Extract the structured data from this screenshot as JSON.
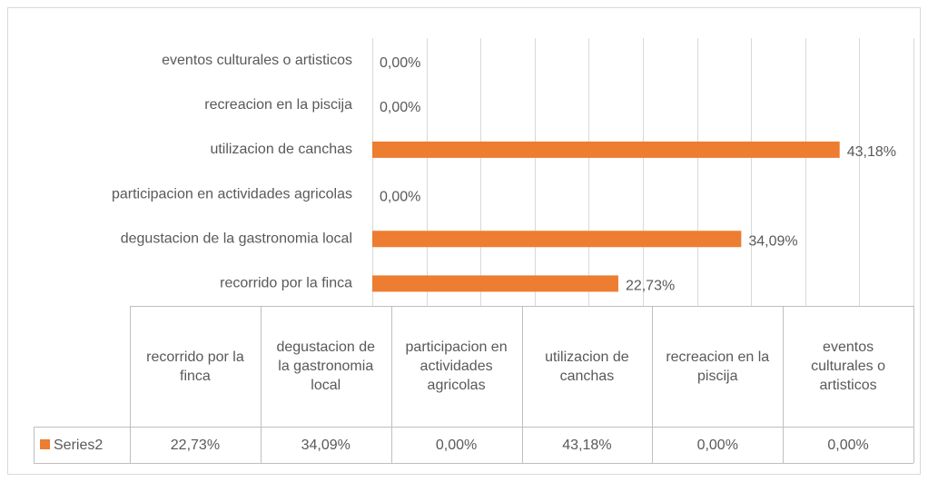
{
  "chart_data": {
    "type": "bar",
    "orientation": "horizontal",
    "categories": [
      "recorrido por la finca",
      "degustacion de la gastronomia local",
      "participacion en actividades agricolas",
      "utilizacion de canchas",
      "recreacion en la piscija",
      "eventos culturales o artisticos"
    ],
    "series": [
      {
        "name": "Series2",
        "color": "#ed7d31",
        "values": [
          22.73,
          34.09,
          0,
          43.18,
          0,
          0
        ],
        "value_labels": [
          "22,73%",
          "34,09%",
          "0,00%",
          "43,18%",
          "0,00%",
          "0,00%"
        ]
      }
    ],
    "xlim": [
      0,
      50
    ],
    "xticks": [
      0,
      5,
      10,
      15,
      20,
      25,
      30,
      35,
      40,
      45,
      50
    ],
    "grid": true,
    "data_table": true
  }
}
